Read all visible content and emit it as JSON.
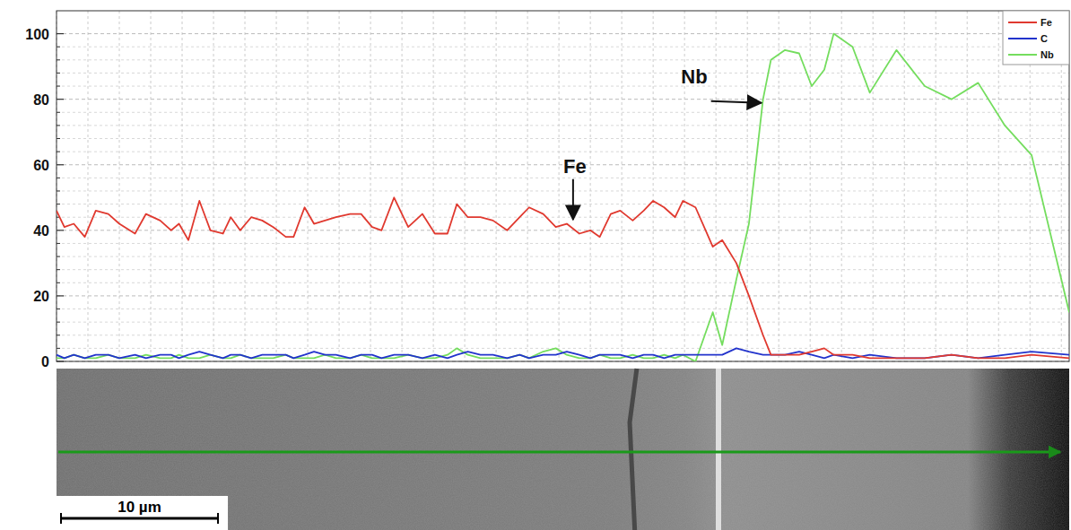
{
  "chart_data": {
    "type": "line",
    "x": [
      0,
      0.5,
      1.1,
      1.8,
      2.5,
      3.3,
      4.0,
      5.0,
      5.7,
      6.6,
      7.3,
      7.8,
      8.4,
      9.1,
      9.8,
      10.6,
      11.1,
      11.7,
      12.4,
      13.1,
      13.8,
      14.6,
      15.1,
      15.8,
      16.4,
      17.1,
      17.8,
      18.7,
      19.4,
      20.1,
      20.7,
      21.5,
      22.4,
      23.3,
      24.1,
      24.9,
      25.5,
      26.2,
      27.0,
      27.8,
      28.7,
      29.5,
      30.1,
      31.0,
      31.8,
      32.5,
      33.3,
      34.0,
      34.6,
      35.3,
      35.9,
      36.7,
      37.4,
      38.0,
      38.7,
      39.4,
      39.9,
      40.7,
      41.8,
      42.4,
      43.3,
      44.1,
      45.0,
      45.5,
      46.4,
      47.3,
      48.1,
      48.9,
      49.5,
      50.7,
      51.8,
      53.5,
      55.3,
      57.0,
      58.7,
      60.4,
      62.1,
      64.5
    ],
    "series": [
      {
        "name": "Fe",
        "color": "#e0392f",
        "values": [
          46,
          41,
          42,
          38,
          46,
          45,
          42,
          39,
          45,
          43,
          40,
          42,
          37,
          49,
          40,
          39,
          44,
          40,
          44,
          43,
          41,
          38,
          38,
          47,
          42,
          43,
          44,
          45,
          45,
          41,
          40,
          50,
          41,
          45,
          39,
          39,
          48,
          44,
          44,
          43,
          40,
          44,
          47,
          45,
          41,
          42,
          39,
          40,
          38,
          45,
          46,
          43,
          46,
          49,
          47,
          44,
          49,
          47,
          35,
          37,
          30,
          20,
          8,
          2,
          2,
          2,
          3,
          4,
          2,
          2,
          1,
          1,
          1,
          2,
          1,
          1,
          2,
          1
        ]
      },
      {
        "name": "C",
        "color": "#2233cc",
        "values": [
          2,
          1,
          2,
          1,
          2,
          2,
          1,
          2,
          1,
          2,
          2,
          1,
          2,
          3,
          2,
          1,
          2,
          2,
          1,
          2,
          2,
          2,
          1,
          2,
          3,
          2,
          2,
          1,
          2,
          2,
          1,
          2,
          2,
          1,
          2,
          1,
          2,
          3,
          2,
          2,
          1,
          2,
          1,
          2,
          2,
          3,
          2,
          1,
          2,
          2,
          2,
          1,
          2,
          2,
          1,
          2,
          2,
          2,
          2,
          2,
          4,
          3,
          2,
          2,
          2,
          3,
          2,
          1,
          2,
          1,
          2,
          1,
          1,
          2,
          1,
          2,
          3,
          2
        ]
      },
      {
        "name": "Nb",
        "color": "#74dd5e",
        "values": [
          1,
          1,
          2,
          1,
          1,
          2,
          1,
          1,
          2,
          1,
          1,
          2,
          1,
          1,
          2,
          1,
          1,
          2,
          1,
          1,
          1,
          2,
          1,
          1,
          1,
          2,
          1,
          1,
          2,
          1,
          1,
          1,
          2,
          1,
          1,
          2,
          4,
          2,
          1,
          1,
          1,
          2,
          1,
          3,
          4,
          2,
          1,
          1,
          2,
          1,
          1,
          2,
          1,
          1,
          2,
          1,
          2,
          0,
          15,
          5,
          25,
          42,
          80,
          92,
          95,
          94,
          84,
          89,
          100,
          96,
          82,
          95,
          84,
          80,
          85,
          72,
          63,
          15
        ]
      }
    ],
    "xlim": [
      0,
      64.5
    ],
    "xticks": [
      0,
      2,
      4,
      6,
      8,
      10,
      12,
      14,
      16,
      18,
      20,
      22,
      24,
      26,
      28,
      30,
      32,
      34,
      36,
      38,
      40,
      42,
      44,
      46,
      48,
      50,
      52,
      54,
      56,
      58,
      60,
      62,
      64
    ],
    "ylim": [
      0,
      107
    ],
    "yticks": [
      0,
      20,
      40,
      60,
      80,
      100
    ],
    "tick_labels": "y",
    "grid": true,
    "legend": "upper right",
    "annotations": [
      {
        "text": "Fe",
        "x": 32.9,
        "y": 42.5
      },
      {
        "text": "Nb",
        "x": 45.0,
        "y": 78.9
      }
    ],
    "scale_bar": {
      "label": "10 µm",
      "length": 10
    }
  }
}
